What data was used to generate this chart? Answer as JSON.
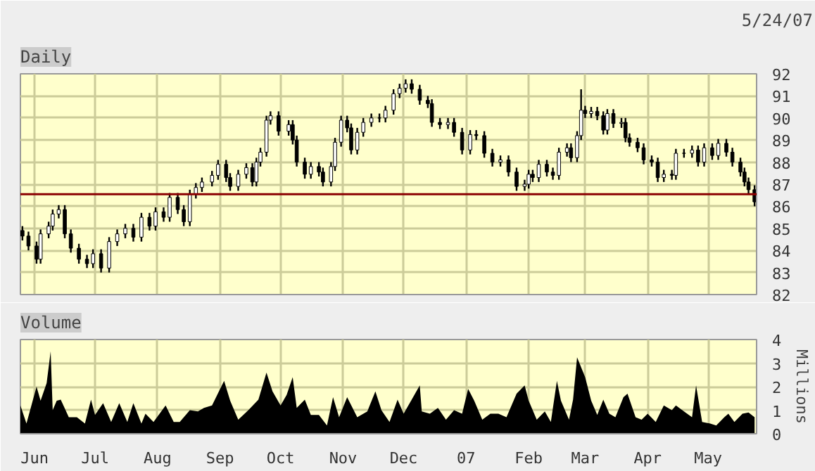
{
  "chart_data": [
    {
      "type": "candlestick",
      "title": "Daily",
      "subtitle": "5/24/07",
      "color": "#000000",
      "grid": true,
      "tick_labels": "y",
      "xlim": [
        "2006-05-25",
        "2007-05-25"
      ],
      "xticks": [
        {
          "value": "2006-06-01",
          "label": null
        },
        {
          "value": "2006-07-01",
          "label": null
        },
        {
          "value": "2006-08-01",
          "label": null
        },
        {
          "value": "2006-09-01",
          "label": null
        },
        {
          "value": "2006-10-01",
          "label": null
        },
        {
          "value": "2006-11-01",
          "label": null
        },
        {
          "value": "2006-12-01",
          "label": null
        },
        {
          "value": "2007-01-01",
          "label": null
        },
        {
          "value": "2007-02-01",
          "label": null
        },
        {
          "value": "2007-03-01",
          "label": null
        },
        {
          "value": "2007-04-01",
          "label": null
        },
        {
          "value": "2007-05-01",
          "label": null
        }
      ],
      "ylim": [
        82,
        92
      ],
      "yticks": [
        82,
        83,
        84,
        85,
        86,
        87,
        88,
        89,
        90,
        91,
        92
      ],
      "ref_lines": [
        {
          "axis": "y",
          "value": 86.55,
          "color": "#8b0000"
        }
      ],
      "x": [
        "2006-05-26",
        "2006-05-29",
        "2006-06-02",
        "2006-06-04",
        "2006-06-08",
        "2006-06-10",
        "2006-06-13",
        "2006-06-16",
        "2006-06-19",
        "2006-06-23",
        "2006-06-27",
        "2006-06-30",
        "2006-07-04",
        "2006-07-08",
        "2006-07-12",
        "2006-07-16",
        "2006-07-20",
        "2006-07-24",
        "2006-07-28",
        "2006-07-31",
        "2006-08-04",
        "2006-08-07",
        "2006-08-11",
        "2006-08-14",
        "2006-08-17",
        "2006-08-20",
        "2006-08-23",
        "2006-08-28",
        "2006-08-31",
        "2006-09-04",
        "2006-09-06",
        "2006-09-10",
        "2006-09-14",
        "2006-09-17",
        "2006-09-19",
        "2006-09-21",
        "2006-09-24",
        "2006-09-26",
        "2006-09-30",
        "2006-10-05",
        "2006-10-07",
        "2006-10-09",
        "2006-10-13",
        "2006-10-16",
        "2006-10-20",
        "2006-10-22",
        "2006-10-26",
        "2006-10-28",
        "2006-10-31",
        "2006-11-03",
        "2006-11-05",
        "2006-11-08",
        "2006-11-11",
        "2006-11-15",
        "2006-11-19",
        "2006-11-22",
        "2006-11-26",
        "2006-11-29",
        "2006-12-02",
        "2006-12-05",
        "2006-12-09",
        "2006-12-13",
        "2006-12-15",
        "2006-12-19",
        "2006-12-23",
        "2006-12-26",
        "2006-12-30",
        "2007-01-03",
        "2007-01-06",
        "2007-01-10",
        "2007-01-14",
        "2007-01-18",
        "2007-01-22",
        "2007-01-26",
        "2007-01-30",
        "2007-02-01",
        "2007-02-03",
        "2007-02-06",
        "2007-02-10",
        "2007-02-13",
        "2007-02-16",
        "2007-02-20",
        "2007-02-22",
        "2007-02-25",
        "2007-02-27",
        "2007-03-01",
        "2007-03-04",
        "2007-03-07",
        "2007-03-10",
        "2007-03-12",
        "2007-03-15",
        "2007-03-19",
        "2007-03-21",
        "2007-03-23",
        "2007-03-27",
        "2007-03-30",
        "2007-04-03",
        "2007-04-06",
        "2007-04-09",
        "2007-04-13",
        "2007-04-15",
        "2007-04-19",
        "2007-04-23",
        "2007-04-26",
        "2007-04-29",
        "2007-05-03",
        "2007-05-06",
        "2007-05-10",
        "2007-05-13",
        "2007-05-17",
        "2007-05-19",
        "2007-05-21",
        "2007-05-24"
      ],
      "ohlc": [
        [
          84.9,
          85.1,
          84.45,
          84.65
        ],
        [
          84.65,
          84.85,
          84.0,
          84.2
        ],
        [
          84.2,
          84.4,
          83.4,
          83.6
        ],
        [
          83.6,
          84.95,
          83.4,
          84.75
        ],
        [
          84.75,
          85.3,
          84.55,
          85.1
        ],
        [
          85.1,
          85.85,
          84.9,
          85.65
        ],
        [
          85.65,
          86.05,
          85.45,
          85.85
        ],
        [
          85.85,
          86.05,
          84.55,
          84.75
        ],
        [
          84.75,
          84.95,
          83.9,
          84.1
        ],
        [
          84.1,
          84.3,
          83.4,
          83.6
        ],
        [
          83.6,
          83.8,
          83.2,
          83.4
        ],
        [
          83.4,
          84.05,
          83.2,
          83.85
        ],
        [
          83.85,
          84.05,
          83.0,
          83.2
        ],
        [
          83.2,
          84.6,
          83.0,
          84.4
        ],
        [
          84.4,
          84.95,
          84.2,
          84.75
        ],
        [
          84.75,
          85.2,
          84.55,
          85.0
        ],
        [
          85.0,
          85.2,
          84.4,
          84.6
        ],
        [
          84.6,
          85.7,
          84.4,
          85.5
        ],
        [
          85.5,
          85.7,
          84.9,
          85.1
        ],
        [
          85.1,
          85.95,
          84.9,
          85.75
        ],
        [
          85.75,
          85.95,
          85.3,
          85.5
        ],
        [
          85.5,
          86.6,
          85.3,
          86.4
        ],
        [
          86.4,
          86.6,
          85.65,
          85.85
        ],
        [
          85.85,
          86.05,
          85.1,
          85.3
        ],
        [
          85.3,
          86.75,
          85.1,
          86.55
        ],
        [
          86.55,
          87.05,
          86.35,
          86.85
        ],
        [
          86.85,
          87.3,
          86.65,
          87.1
        ],
        [
          87.1,
          87.6,
          86.9,
          87.4
        ],
        [
          87.4,
          88.1,
          87.2,
          87.9
        ],
        [
          87.9,
          88.1,
          87.1,
          87.3
        ],
        [
          87.3,
          87.5,
          86.7,
          86.9
        ],
        [
          86.9,
          87.65,
          86.7,
          87.45
        ],
        [
          87.45,
          87.95,
          87.25,
          87.75
        ],
        [
          87.75,
          87.95,
          86.9,
          87.1
        ],
        [
          87.1,
          88.2,
          86.9,
          88.0
        ],
        [
          88.0,
          88.65,
          87.8,
          88.45
        ],
        [
          88.45,
          90.1,
          88.25,
          89.9
        ],
        [
          89.9,
          90.3,
          89.7,
          90.1
        ],
        [
          90.1,
          90.3,
          89.2,
          89.4
        ],
        [
          89.4,
          89.9,
          89.2,
          89.7
        ],
        [
          89.7,
          89.9,
          88.8,
          89.0
        ],
        [
          89.0,
          89.2,
          87.8,
          88.0
        ],
        [
          88.0,
          88.2,
          87.25,
          87.45
        ],
        [
          87.45,
          88.0,
          87.25,
          87.8
        ],
        [
          87.8,
          88.0,
          87.35,
          87.55
        ],
        [
          87.55,
          87.75,
          86.9,
          87.1
        ],
        [
          87.1,
          88.0,
          86.9,
          87.8
        ],
        [
          87.8,
          89.1,
          87.6,
          88.9
        ],
        [
          88.9,
          90.1,
          88.7,
          89.9
        ],
        [
          89.9,
          90.1,
          89.35,
          89.55
        ],
        [
          89.55,
          89.75,
          88.35,
          88.55
        ],
        [
          88.55,
          89.55,
          88.35,
          89.35
        ],
        [
          89.35,
          90.0,
          89.15,
          89.8
        ],
        [
          89.8,
          90.2,
          89.6,
          90.0
        ],
        [
          90.0,
          90.2,
          89.8,
          90.0
        ],
        [
          90.0,
          90.55,
          89.8,
          90.35
        ],
        [
          90.35,
          91.3,
          90.15,
          91.1
        ],
        [
          91.1,
          91.55,
          90.9,
          91.35
        ],
        [
          91.35,
          91.75,
          91.15,
          91.55
        ],
        [
          91.55,
          91.75,
          91.1,
          91.3
        ],
        [
          91.3,
          91.5,
          90.6,
          90.8
        ],
        [
          90.8,
          91.0,
          90.45,
          90.65
        ],
        [
          90.65,
          90.85,
          89.6,
          89.8
        ],
        [
          89.8,
          90.0,
          89.5,
          89.7
        ],
        [
          89.7,
          90.0,
          89.5,
          89.8
        ],
        [
          89.8,
          90.0,
          89.15,
          89.35
        ],
        [
          89.35,
          89.55,
          88.35,
          88.55
        ],
        [
          88.55,
          89.45,
          88.35,
          89.25
        ],
        [
          89.25,
          89.45,
          89.0,
          89.2
        ],
        [
          89.2,
          89.4,
          88.2,
          88.4
        ],
        [
          88.4,
          88.6,
          87.8,
          88.0
        ],
        [
          88.0,
          88.3,
          87.8,
          88.1
        ],
        [
          88.1,
          88.3,
          87.35,
          87.55
        ],
        [
          87.55,
          87.75,
          86.7,
          86.9
        ],
        [
          86.9,
          87.2,
          86.7,
          87.0
        ],
        [
          87.0,
          87.65,
          86.8,
          87.45
        ],
        [
          87.45,
          87.65,
          87.1,
          87.3
        ],
        [
          87.3,
          88.1,
          87.1,
          87.9
        ],
        [
          87.9,
          88.1,
          87.35,
          87.55
        ],
        [
          87.55,
          87.75,
          87.2,
          87.4
        ],
        [
          87.4,
          88.65,
          87.2,
          88.45
        ],
        [
          88.45,
          88.85,
          88.25,
          88.65
        ],
        [
          88.65,
          88.85,
          88.0,
          88.2
        ],
        [
          88.2,
          89.4,
          88.0,
          89.2
        ],
        [
          89.2,
          91.3,
          89.0,
          90.35
        ],
        [
          90.35,
          90.55,
          90.0,
          90.2
        ],
        [
          90.2,
          90.5,
          90.0,
          90.3
        ],
        [
          90.3,
          90.5,
          89.9,
          90.1
        ],
        [
          90.1,
          90.3,
          89.25,
          89.45
        ],
        [
          89.45,
          90.4,
          89.25,
          90.2
        ],
        [
          90.2,
          90.4,
          89.55,
          89.75
        ],
        [
          89.75,
          90.0,
          89.55,
          89.8
        ],
        [
          89.8,
          90.0,
          88.9,
          89.1
        ],
        [
          89.1,
          89.3,
          88.7,
          88.9
        ],
        [
          88.9,
          89.1,
          88.45,
          88.65
        ],
        [
          88.65,
          88.85,
          87.9,
          88.1
        ],
        [
          88.1,
          88.3,
          87.8,
          88.0
        ],
        [
          88.0,
          88.2,
          87.1,
          87.3
        ],
        [
          87.3,
          87.65,
          87.1,
          87.45
        ],
        [
          87.45,
          87.65,
          87.2,
          87.4
        ],
        [
          87.4,
          88.6,
          87.2,
          88.4
        ],
        [
          88.4,
          88.6,
          88.2,
          88.4
        ],
        [
          88.4,
          88.75,
          88.2,
          88.55
        ],
        [
          88.55,
          88.75,
          87.8,
          88.0
        ],
        [
          88.0,
          88.85,
          87.8,
          88.65
        ],
        [
          88.65,
          88.85,
          88.1,
          88.3
        ],
        [
          88.3,
          89.05,
          88.1,
          88.85
        ],
        [
          88.85,
          89.05,
          88.25,
          88.45
        ],
        [
          88.45,
          88.65,
          87.8,
          88.0
        ],
        [
          88.0,
          88.2,
          87.35,
          87.55
        ],
        [
          87.55,
          87.75,
          86.9,
          87.1
        ],
        [
          87.1,
          87.3,
          86.55,
          86.75
        ],
        [
          86.75,
          86.95,
          86.0,
          86.2
        ]
      ]
    },
    {
      "type": "area",
      "title": "Volume",
      "ylabel": "Millions",
      "color": "#000000",
      "grid": true,
      "xlim": [
        "2006-05-25",
        "2007-05-25"
      ],
      "xticks": [
        {
          "value": "2006-06-01",
          "label": "Jun"
        },
        {
          "value": "2006-07-01",
          "label": "Jul"
        },
        {
          "value": "2006-08-01",
          "label": "Aug"
        },
        {
          "value": "2006-09-01",
          "label": "Sep"
        },
        {
          "value": "2006-10-01",
          "label": "Oct"
        },
        {
          "value": "2006-11-01",
          "label": "Nov"
        },
        {
          "value": "2006-12-01",
          "label": "Dec"
        },
        {
          "value": "2007-01-01",
          "label": "07"
        },
        {
          "value": "2007-02-01",
          "label": "Feb"
        },
        {
          "value": "2007-03-01",
          "label": "Mar"
        },
        {
          "value": "2007-04-01",
          "label": "Apr"
        },
        {
          "value": "2007-05-01",
          "label": "May"
        }
      ],
      "ylim": [
        0,
        4
      ],
      "yticks": [
        0,
        1,
        2,
        3,
        4
      ],
      "x": [
        "2006-05-25",
        "2006-05-28",
        "2006-06-02",
        "2006-06-04",
        "2006-06-07",
        "2006-06-09",
        "2006-06-10",
        "2006-06-12",
        "2006-06-14",
        "2006-06-18",
        "2006-06-22",
        "2006-06-26",
        "2006-06-29",
        "2006-07-01",
        "2006-07-05",
        "2006-07-09",
        "2006-07-13",
        "2006-07-17",
        "2006-07-20",
        "2006-07-24",
        "2006-07-26",
        "2006-07-30",
        "2006-08-05",
        "2006-08-09",
        "2006-08-12",
        "2006-08-17",
        "2006-08-21",
        "2006-08-24",
        "2006-08-28",
        "2006-09-03",
        "2006-09-06",
        "2006-09-10",
        "2006-09-15",
        "2006-09-20",
        "2006-09-24",
        "2006-09-27",
        "2006-10-01",
        "2006-10-04",
        "2006-10-07",
        "2006-10-09",
        "2006-10-13",
        "2006-10-16",
        "2006-10-20",
        "2006-10-24",
        "2006-10-27",
        "2006-10-30",
        "2006-11-03",
        "2006-11-08",
        "2006-11-13",
        "2006-11-17",
        "2006-11-20",
        "2006-11-24",
        "2006-11-28",
        "2006-12-01",
        "2006-12-05",
        "2006-12-09",
        "2006-12-10",
        "2006-12-14",
        "2006-12-18",
        "2006-12-22",
        "2006-12-26",
        "2006-12-30",
        "2007-01-02",
        "2007-01-05",
        "2007-01-09",
        "2007-01-13",
        "2007-01-17",
        "2007-01-21",
        "2007-01-26",
        "2007-01-30",
        "2007-02-01",
        "2007-02-05",
        "2007-02-09",
        "2007-02-12",
        "2007-02-15",
        "2007-02-17",
        "2007-02-21",
        "2007-02-23",
        "2007-02-25",
        "2007-03-01",
        "2007-03-04",
        "2007-03-07",
        "2007-03-10",
        "2007-03-13",
        "2007-03-16",
        "2007-03-20",
        "2007-03-22",
        "2007-03-26",
        "2007-03-29",
        "2007-04-01",
        "2007-04-05",
        "2007-04-09",
        "2007-04-13",
        "2007-04-15",
        "2007-04-19",
        "2007-04-23",
        "2007-04-25",
        "2007-04-28",
        "2007-05-02",
        "2007-05-05",
        "2007-05-09",
        "2007-05-11",
        "2007-05-14",
        "2007-05-18",
        "2007-05-21",
        "2007-05-24"
      ],
      "values": [
        1.2,
        0.43,
        2.0,
        1.4,
        2.15,
        3.5,
        1.0,
        1.4,
        1.45,
        0.7,
        0.7,
        0.43,
        1.45,
        0.8,
        1.3,
        0.5,
        1.3,
        0.5,
        1.3,
        0.43,
        0.85,
        0.5,
        1.2,
        0.5,
        0.5,
        1.0,
        0.95,
        1.1,
        1.2,
        2.25,
        1.4,
        0.6,
        1.0,
        1.45,
        2.6,
        1.8,
        1.2,
        1.65,
        2.4,
        1.1,
        1.45,
        0.8,
        0.8,
        0.35,
        1.55,
        0.7,
        1.55,
        0.7,
        0.95,
        1.8,
        1.0,
        0.5,
        1.45,
        0.85,
        1.45,
        2.05,
        0.95,
        0.85,
        1.1,
        0.6,
        1.0,
        0.85,
        1.9,
        1.4,
        0.6,
        0.85,
        0.85,
        0.7,
        1.7,
        2.05,
        1.4,
        0.6,
        0.95,
        0.5,
        2.25,
        1.4,
        0.6,
        1.45,
        3.25,
        2.4,
        1.4,
        0.8,
        1.45,
        0.85,
        0.7,
        1.55,
        1.7,
        0.7,
        0.6,
        0.85,
        0.5,
        1.2,
        1.0,
        1.2,
        0.95,
        0.7,
        2.05,
        0.5,
        0.43,
        0.35,
        0.7,
        0.85,
        0.5,
        0.85,
        0.9,
        0.7
      ]
    }
  ]
}
